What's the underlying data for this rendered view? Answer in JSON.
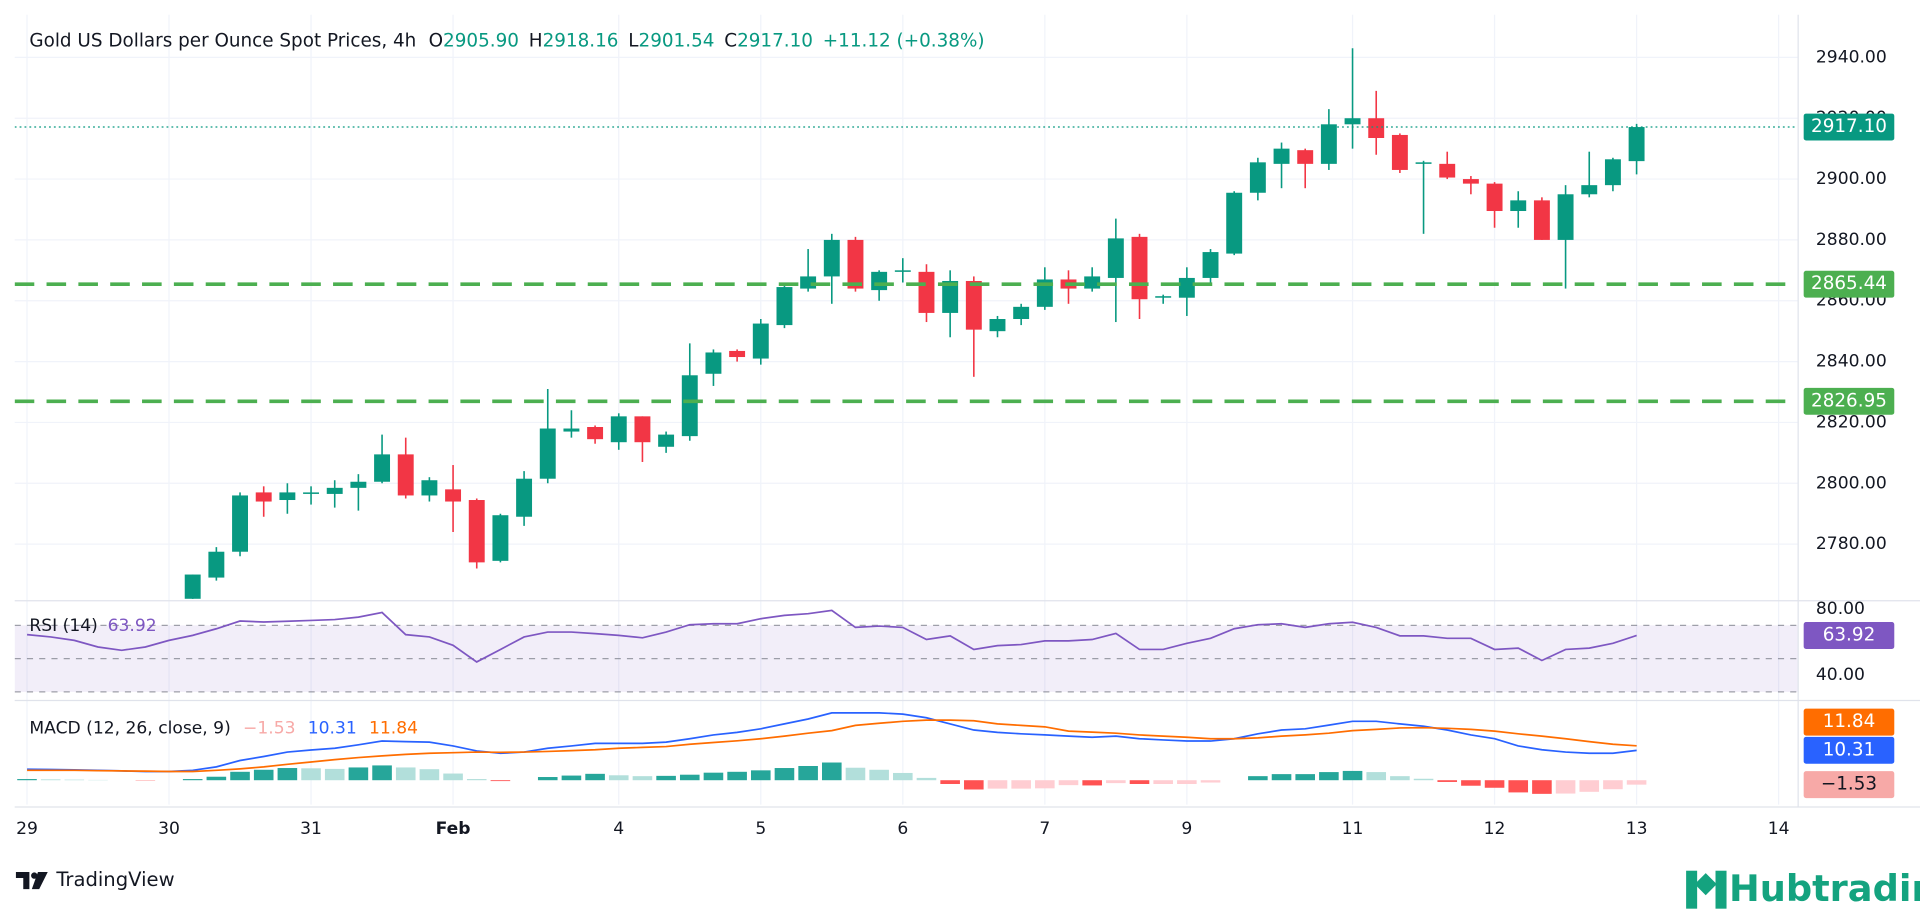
{
  "chart_data": {
    "type": "candlestick",
    "title": "Gold US Dollars per Ounce Spot Prices, 4h",
    "header_stats": [
      {
        "key": "O",
        "text": "2905.90"
      },
      {
        "key": "H",
        "text": "2918.16"
      },
      {
        "key": "L",
        "text": "2901.54"
      },
      {
        "key": "C",
        "text": "2917.10"
      }
    ],
    "change_text": "+11.12 (+0.38%)",
    "up_color": "#089981",
    "down_color": "#f23645",
    "x": [
      7,
      8,
      9,
      10,
      11,
      12,
      13,
      14,
      15,
      16,
      17,
      18,
      19,
      20,
      21,
      22,
      23,
      24,
      25,
      26,
      27,
      28,
      29,
      30,
      31,
      32,
      33,
      34,
      35,
      36,
      37,
      38,
      39,
      40,
      41,
      42,
      43,
      44,
      45,
      46,
      47,
      48,
      49,
      50,
      51,
      52,
      53,
      54,
      55,
      56,
      57,
      58,
      59,
      60,
      61,
      62,
      63,
      64,
      65,
      66,
      67,
      68
    ],
    "open": [
      2762,
      2769,
      2777.5,
      2797,
      2794.5,
      2796.5,
      2796.5,
      2798.5,
      2800.5,
      2809.5,
      2796,
      2798,
      2794.5,
      2774.5,
      2789,
      2801.5,
      2817,
      2818.5,
      2813.5,
      2822,
      2812,
      2815.5,
      2836,
      2843.5,
      2841,
      2852,
      2864,
      2868,
      2880,
      2863.5,
      2869.5,
      2869.5,
      2856,
      2866.5,
      2850,
      2854,
      2858,
      2867,
      2864,
      2867.5,
      2881,
      2861,
      2861,
      2867.5,
      2875.5,
      2895.5,
      2905,
      2909.5,
      2905,
      2918,
      2920,
      2914.5,
      2905,
      2905,
      2900,
      2898.5,
      2889.5,
      2893,
      2880,
      2895,
      2898,
      2905.9
    ],
    "high": [
      2770,
      2779,
      2797,
      2799,
      2800,
      2799,
      2801,
      2803,
      2816,
      2815,
      2802,
      2806,
      2795,
      2790,
      2804,
      2831,
      2824,
      2819,
      2823,
      2822,
      2817,
      2846,
      2844,
      2844,
      2854,
      2866,
      2877,
      2882,
      2881,
      2870,
      2874,
      2872,
      2870,
      2868,
      2855,
      2859,
      2871,
      2870,
      2871,
      2887,
      2882,
      2862,
      2871,
      2877,
      2896,
      2907,
      2912,
      2910,
      2923,
      2943,
      2929,
      2915,
      2906,
      2909,
      2901,
      2899,
      2896,
      2894,
      2898,
      2909,
      2907,
      2918.16
    ],
    "low": [
      2760,
      2768,
      2776,
      2789,
      2790,
      2793,
      2792,
      2791,
      2800,
      2795,
      2794,
      2784,
      2772,
      2774,
      2786,
      2800,
      2815,
      2813,
      2811,
      2807,
      2810,
      2814,
      2832,
      2840,
      2839,
      2851,
      2863,
      2859,
      2863,
      2860,
      2866,
      2853,
      2848,
      2835,
      2848,
      2852,
      2857,
      2859,
      2863,
      2853,
      2854,
      2859,
      2855,
      2865,
      2875,
      2893,
      2897,
      2897,
      2903,
      2910,
      2908,
      2902,
      2882,
      2900,
      2895,
      2884,
      2884,
      2880,
      2864,
      2894,
      2896,
      2901.54
    ],
    "close": [
      2770,
      2777.5,
      2796,
      2794,
      2797,
      2797,
      2798.5,
      2800.5,
      2809.5,
      2796,
      2801,
      2794,
      2774,
      2789.5,
      2801.5,
      2818,
      2818,
      2814.5,
      2822,
      2813.5,
      2816,
      2835.5,
      2843,
      2841.5,
      2852.5,
      2864.5,
      2868,
      2880,
      2864,
      2869.5,
      2870,
      2856,
      2866.5,
      2850.5,
      2854,
      2858,
      2867,
      2864,
      2868,
      2880.5,
      2860.5,
      2861.5,
      2867.5,
      2876,
      2895.5,
      2905.5,
      2910,
      2905,
      2918,
      2920,
      2913.5,
      2903,
      2905.5,
      2900.5,
      2898.5,
      2889.5,
      2893,
      2880,
      2895,
      2898,
      2906.5,
      2917.1
    ],
    "xlim": [
      -0.52,
      74.8
    ],
    "xticks": [
      {
        "value": 0,
        "label": "29"
      },
      {
        "value": 6,
        "label": "30"
      },
      {
        "value": 12,
        "label": "31"
      },
      {
        "value": 18,
        "label": "Feb"
      },
      {
        "value": 25,
        "label": "4"
      },
      {
        "value": 31,
        "label": "5"
      },
      {
        "value": 37,
        "label": "6"
      },
      {
        "value": 43,
        "label": "7"
      },
      {
        "value": 49,
        "label": "9"
      },
      {
        "value": 56,
        "label": "11"
      },
      {
        "value": 62,
        "label": "12"
      },
      {
        "value": 68,
        "label": "13"
      },
      {
        "value": 74,
        "label": "14"
      }
    ],
    "ylim": [
      2762,
      2954
    ],
    "yticks": [
      {
        "value": 2780,
        "label": "2780.00"
      },
      {
        "value": 2800,
        "label": "2800.00"
      },
      {
        "value": 2820,
        "label": "2820.00"
      },
      {
        "value": 2840,
        "label": "2840.00"
      },
      {
        "value": 2860,
        "label": "2860.00"
      },
      {
        "value": 2880,
        "label": "2880.00"
      },
      {
        "value": 2900,
        "label": "2900.00"
      },
      {
        "value": 2920,
        "label": "2920.00"
      },
      {
        "value": 2940,
        "label": "2940.00"
      }
    ],
    "grid": true,
    "levels": [
      {
        "value": 2865.44,
        "label": "2865.44",
        "color": "#4caf50"
      },
      {
        "value": 2826.95,
        "label": "2826.95",
        "color": "#4caf50"
      }
    ],
    "last_price": {
      "value": 2917.1,
      "label": "2917.10",
      "color": "#089981"
    },
    "rsi": {
      "title": "RSI (14)",
      "value_label": "63.92",
      "color": "#7e57c2",
      "x": [
        0,
        1,
        2,
        3,
        4,
        5,
        6,
        7,
        8,
        9,
        10,
        11,
        12,
        13,
        14,
        15,
        16,
        17,
        18,
        19,
        20,
        21,
        22,
        23,
        24,
        25,
        26,
        27,
        28,
        29,
        30,
        31,
        32,
        33,
        34,
        35,
        36,
        37,
        38,
        39,
        40,
        41,
        42,
        43,
        44,
        45,
        46,
        47,
        48,
        49,
        50,
        51,
        52,
        53,
        54,
        55,
        56,
        57,
        58,
        59,
        60,
        61,
        62,
        63,
        64,
        65,
        66,
        67,
        68
      ],
      "values": [
        64.4,
        63,
        61,
        57,
        55,
        57,
        61,
        64,
        68,
        72.6,
        72,
        72.5,
        73,
        73.5,
        75,
        77.8,
        64.4,
        63,
        58,
        48,
        55.5,
        63,
        66,
        66,
        65,
        64,
        62.5,
        66,
        70.4,
        71,
        71,
        74,
        76,
        77,
        79,
        68.8,
        69.6,
        68.8,
        61.5,
        63.7,
        55.5,
        57.8,
        58.5,
        60.7,
        60.7,
        61.5,
        65.2,
        55.5,
        55.5,
        59.2,
        62.2,
        68,
        70.4,
        71,
        68.8,
        71,
        71.9,
        68.8,
        63.7,
        63.7,
        62.2,
        62.2,
        55.5,
        56.3,
        48.9,
        55.5,
        56.3,
        59.2,
        63.92
      ],
      "ylim": [
        27,
        83
      ],
      "yticks": [
        {
          "value": 80,
          "label": "80.00"
        },
        {
          "value": 40,
          "label": "40.00"
        }
      ],
      "levels": [
        70,
        50,
        30
      ]
    },
    "macd": {
      "title": "MACD (12, 26, close, 9)",
      "x": [
        0,
        1,
        2,
        3,
        4,
        5,
        6,
        7,
        8,
        9,
        10,
        11,
        12,
        13,
        14,
        15,
        16,
        17,
        18,
        19,
        20,
        21,
        22,
        23,
        24,
        25,
        26,
        27,
        28,
        29,
        30,
        31,
        32,
        33,
        34,
        35,
        36,
        37,
        38,
        39,
        40,
        41,
        42,
        43,
        44,
        45,
        46,
        47,
        48,
        49,
        50,
        51,
        52,
        53,
        54,
        55,
        56,
        57,
        58,
        59,
        60,
        61,
        62,
        63,
        64,
        65,
        66,
        67,
        68
      ],
      "ylim": [
        -8.4,
        26.2
      ],
      "histogram": {
        "value_label": "−1.53",
        "colors": [
          "#26a69a",
          "#b2dfdb",
          "#ff5252",
          "#ffcdd2"
        ],
        "label_color": "#f7a9a7",
        "values": [
          0.4,
          0.3,
          0.2,
          0.1,
          0.0,
          -0.1,
          0.0,
          0.4,
          1.2,
          2.9,
          3.6,
          4.2,
          4.1,
          3.9,
          4.4,
          5.1,
          4.4,
          3.8,
          2.3,
          0.4,
          -0.3,
          0.0,
          1.1,
          1.6,
          2.2,
          1.7,
          1.4,
          1.5,
          1.9,
          2.6,
          2.9,
          3.4,
          4.2,
          4.9,
          6.1,
          4.3,
          3.6,
          2.5,
          0.8,
          -1.3,
          -3.2,
          -2.9,
          -2.9,
          -2.8,
          -1.7,
          -1.8,
          -1.0,
          -1.3,
          -1.3,
          -1.3,
          -0.8,
          0.0,
          1.4,
          2.1,
          2.1,
          2.8,
          3.2,
          2.8,
          1.4,
          0.5,
          -0.6,
          -1.9,
          -2.6,
          -4.2,
          -4.7,
          -4.6,
          -4.0,
          -3.1,
          -1.53
        ]
      },
      "macd_line": {
        "value_label": "10.31",
        "color": "#2962ff",
        "values": [
          3.8,
          3.7,
          3.6,
          3.4,
          3.2,
          3.0,
          3.0,
          3.4,
          4.6,
          6.8,
          8.2,
          9.7,
          10.4,
          11.0,
          12.2,
          13.5,
          13.3,
          13.1,
          11.8,
          10.1,
          9.3,
          9.7,
          11.0,
          11.8,
          12.7,
          12.7,
          12.7,
          13.1,
          14.3,
          15.6,
          16.5,
          17.7,
          19.4,
          21.1,
          23.2,
          23.2,
          23.2,
          22.8,
          21.5,
          19.4,
          17.3,
          16.5,
          16.0,
          15.6,
          15.2,
          14.8,
          15.2,
          14.3,
          13.9,
          13.5,
          13.5,
          14.3,
          16.0,
          17.3,
          17.7,
          19.0,
          20.3,
          20.3,
          19.4,
          18.6,
          17.3,
          15.6,
          14.3,
          11.8,
          10.5,
          9.7,
          9.3,
          9.3,
          10.31
        ]
      },
      "signal_line": {
        "value_label": "11.84",
        "color": "#ff6d00",
        "values": [
          3.4,
          3.4,
          3.4,
          3.3,
          3.2,
          3.1,
          3.0,
          3.0,
          3.4,
          3.9,
          4.6,
          5.5,
          6.3,
          7.1,
          7.8,
          8.4,
          8.9,
          9.3,
          9.5,
          9.7,
          9.6,
          9.7,
          9.9,
          10.2,
          10.5,
          11.0,
          11.3,
          11.6,
          12.4,
          13.0,
          13.6,
          14.3,
          15.2,
          16.2,
          17.1,
          18.9,
          19.6,
          20.3,
          20.7,
          20.7,
          20.5,
          19.4,
          18.9,
          18.4,
          16.9,
          16.6,
          16.2,
          15.6,
          15.2,
          14.8,
          14.3,
          14.3,
          14.6,
          15.2,
          15.6,
          16.2,
          17.1,
          17.5,
          18.0,
          18.1,
          17.9,
          17.5,
          16.9,
          16.0,
          15.2,
          14.3,
          13.3,
          12.4,
          11.84
        ]
      }
    }
  },
  "branding": {
    "left": "TradingView",
    "right": "Hubtrading"
  }
}
